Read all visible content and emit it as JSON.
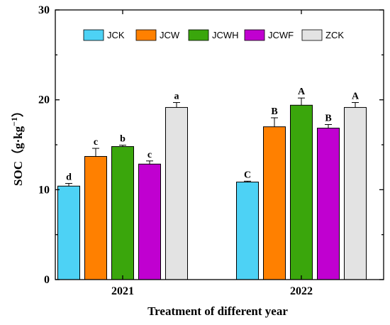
{
  "chart_data": {
    "type": "bar",
    "categories": [
      "2021",
      "2022"
    ],
    "xlabel": "Treatment  of different year",
    "ylabel_main": "SOC",
    "ylabel_unit_open": "（",
    "ylabel_unit_base": "g·kg",
    "ylabel_unit_sup": "−1",
    "ylabel_unit_close": "）",
    "ylim": [
      0,
      30
    ],
    "yticks": [
      "0",
      "10",
      "20",
      "30"
    ],
    "legend_position": "top",
    "series": [
      {
        "name": "JCK",
        "color": "#4dd2f5",
        "values": [
          10.4,
          10.85
        ],
        "errors": [
          0.3,
          0.1
        ],
        "labels": [
          "d",
          "C"
        ]
      },
      {
        "name": "JCW",
        "color": "#ff8000",
        "values": [
          13.7,
          17.0
        ],
        "errors": [
          0.9,
          1.0
        ],
        "labels": [
          "c",
          "B"
        ]
      },
      {
        "name": "JCWH",
        "color": "#3aa60c",
        "values": [
          14.8,
          19.4
        ],
        "errors": [
          0.15,
          0.8
        ],
        "labels": [
          "b",
          "A"
        ]
      },
      {
        "name": "JCWF",
        "color": "#c000d0",
        "values": [
          12.85,
          16.85
        ],
        "errors": [
          0.35,
          0.4
        ],
        "labels": [
          "c",
          "B"
        ]
      },
      {
        "name": "ZCK",
        "color": "#e3e3e3",
        "values": [
          19.15,
          19.15
        ],
        "errors": [
          0.55,
          0.55
        ],
        "labels": [
          "a",
          "A"
        ]
      }
    ]
  }
}
